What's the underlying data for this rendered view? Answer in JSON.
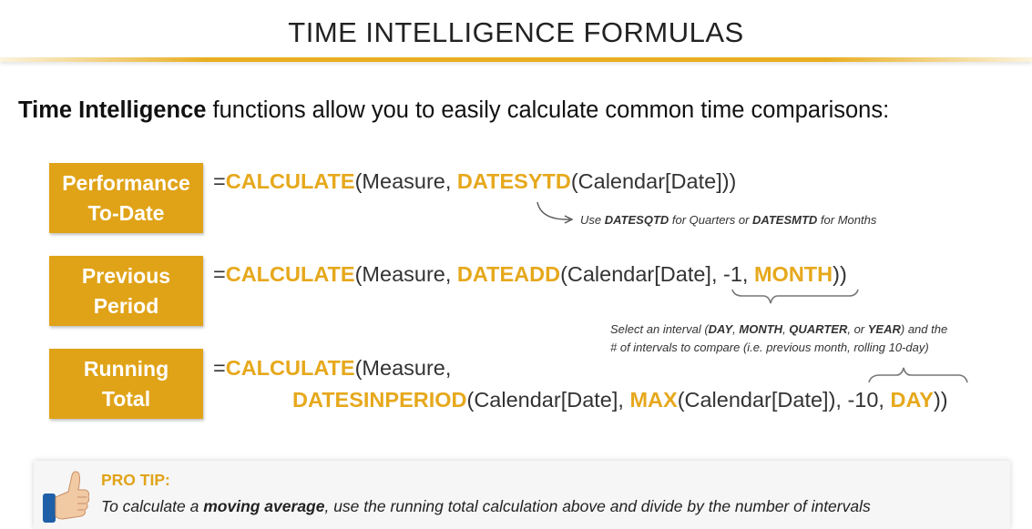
{
  "header": {
    "title": "TIME INTELLIGENCE FORMULAS"
  },
  "intro": {
    "bold": "Time Intelligence",
    "rest": " functions allow you to easily calculate common time comparisons:"
  },
  "rows": [
    {
      "label_line1": "Performance",
      "label_line2": "To-Date",
      "formula": {
        "eq": "=",
        "fn1": "CALCULATE",
        "t1": "(Measure, ",
        "fn2": "DATESYTD",
        "t2": "(Calendar[Date]))"
      },
      "note": {
        "pre": "Use ",
        "b1": "DATESQTD",
        "mid": " for Quarters or ",
        "b2": "DATESMTD",
        "post": " for Months"
      }
    },
    {
      "label_line1": "Previous",
      "label_line2": "Period",
      "formula": {
        "eq": "=",
        "fn1": "CALCULATE",
        "t1": "(Measure, ",
        "fn2": "DATEADD",
        "t2": "(Calendar[Date], -1, ",
        "fn3": "MONTH",
        "t3": "))"
      },
      "note": {
        "l1_pre": "Select an interval (",
        "b1": "DAY",
        "c1": ", ",
        "b2": "MONTH",
        "c2": ", ",
        "b3": "QUARTER",
        "c3": ", or ",
        "b4": "YEAR",
        "l1_post": ") and the",
        "line2": "# of intervals to compare (i.e. previous month, rolling 10-day)"
      }
    },
    {
      "label_line1": "Running",
      "label_line2": "Total",
      "formula": {
        "eq": "=",
        "fn1": "CALCULATE",
        "t1": "(Measure,",
        "fn2": "DATESINPERIOD",
        "t2": "(Calendar[Date], ",
        "fn3": "MAX",
        "t3": "(Calendar[Date]), -10, ",
        "fn4": "DAY",
        "t4": "))"
      }
    }
  ],
  "pro_tip": {
    "title": "PRO TIP:",
    "pre": "To calculate a ",
    "bold": "moving average",
    "post": ", use the running total calculation above and divide by the number of intervals",
    "icon": "thumbs-up-icon"
  },
  "colors": {
    "accent": "#e0a318",
    "function_text": "#e6a81c"
  }
}
